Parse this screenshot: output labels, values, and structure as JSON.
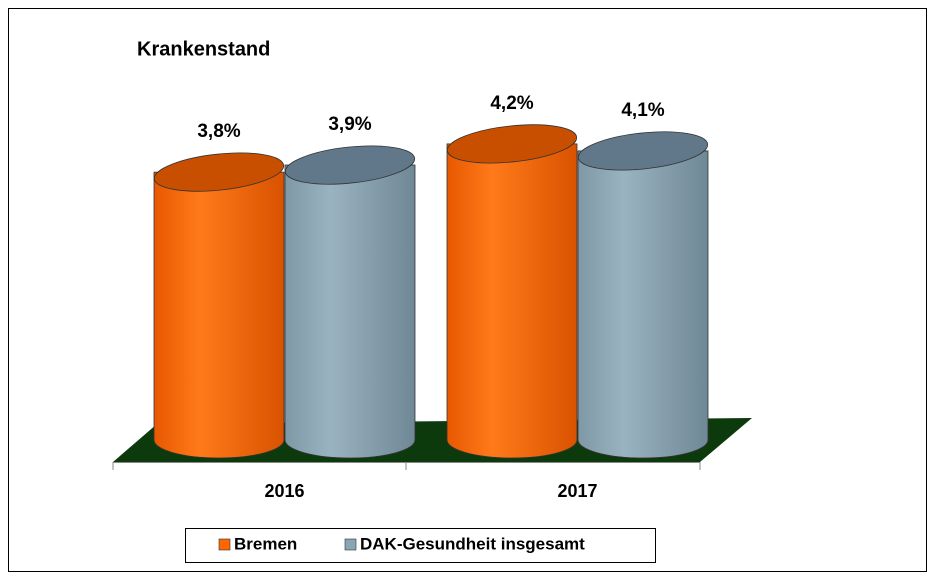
{
  "chart_data": {
    "type": "bar3d-cylinder",
    "title": "Krankenstand",
    "categories": [
      "2016",
      "2017"
    ],
    "series": [
      {
        "name": "Bremen",
        "color": "#ff6600",
        "values": [
          3.8,
          4.2
        ],
        "value_labels": [
          "3,8%",
          "4,2%"
        ]
      },
      {
        "name": "DAK-Gesundheit insgesamt",
        "color": "#8aa5b4",
        "values": [
          3.9,
          4.1
        ],
        "value_labels": [
          "3,9%",
          "4,1%"
        ]
      }
    ],
    "legend": "bottom"
  }
}
